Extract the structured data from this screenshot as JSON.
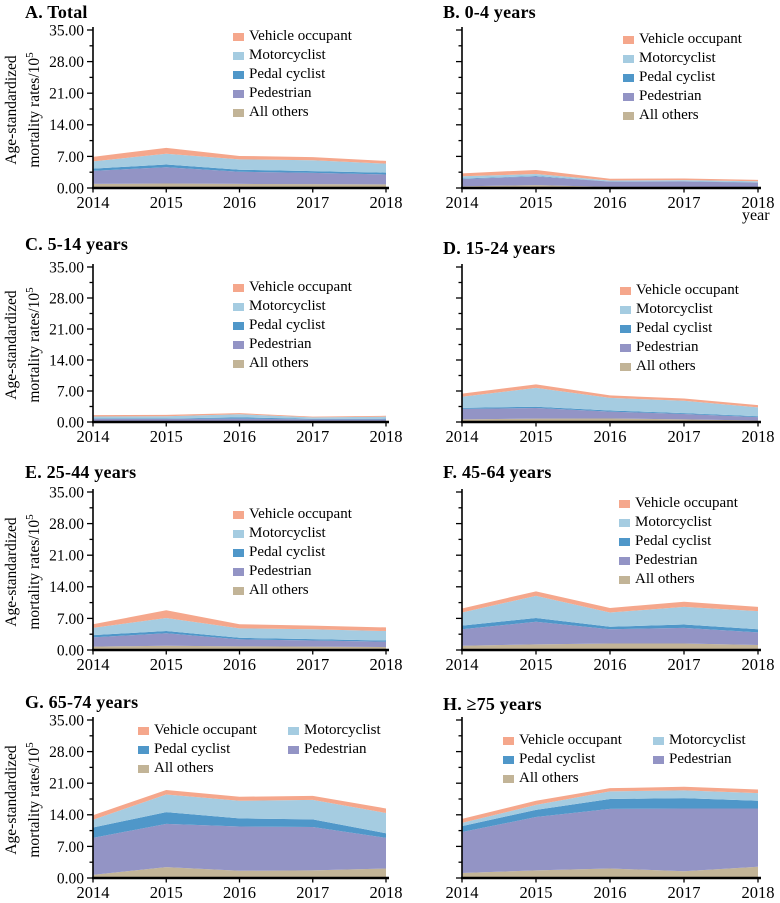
{
  "figure": {
    "y_axis_label_line1": "Age-standardized",
    "y_axis_label_line2": "mortality rates/10",
    "y_axis_label_superscript": "5",
    "x_axis_label": "year",
    "ytick_labels": [
      "0.00",
      "7.00",
      "14.00",
      "21.00",
      "28.00",
      "35.00"
    ],
    "y_minor_tick": 3.5
  },
  "colors": {
    "Vehicle occupant": "#F5A78C",
    "Motorcyclist": "#A5CCE1",
    "Pedal cyclist": "#4F97C9",
    "Pedestrian": "#9394C5",
    "All others": "#C2B497",
    "axis": "#000000",
    "text": "#1a1a1a"
  },
  "legend_order": [
    "Vehicle occupant",
    "Motorcyclist",
    "Pedal cyclist",
    "Pedestrian",
    "All others"
  ],
  "chart_data": [
    {
      "id": "A",
      "title": "A. Total",
      "type": "area",
      "stacked": true,
      "x": [
        2014,
        2015,
        2016,
        2017,
        2018
      ],
      "xticklabels": [
        "2014",
        "2015",
        "2016",
        "2017",
        "2018"
      ],
      "ylim": [
        0,
        35
      ],
      "yticks": [
        0,
        7,
        14,
        21,
        28,
        35
      ],
      "show_ytick_labels": true,
      "legend_columns": 1,
      "grid": false,
      "series": [
        {
          "name": "All others",
          "values": [
            0.9,
            1.0,
            0.9,
            0.85,
            0.8
          ]
        },
        {
          "name": "Pedestrian",
          "values": [
            2.9,
            3.6,
            2.7,
            2.5,
            2.2
          ]
        },
        {
          "name": "Pedal cyclist",
          "values": [
            0.5,
            0.6,
            0.45,
            0.4,
            0.4
          ]
        },
        {
          "name": "Motorcyclist",
          "values": [
            1.6,
            2.4,
            2.3,
            2.4,
            2.0
          ]
        },
        {
          "name": "Vehicle occupant",
          "values": [
            1.0,
            1.3,
            0.75,
            0.7,
            0.6
          ]
        }
      ]
    },
    {
      "id": "B",
      "title": "B. 0-4 years",
      "type": "area",
      "stacked": true,
      "x": [
        2014,
        2015,
        2016,
        2017,
        2018
      ],
      "xticklabels": [
        "2014",
        "2015",
        "2016",
        "2017",
        "2018"
      ],
      "ylim": [
        0,
        35
      ],
      "yticks": [
        0,
        7,
        14,
        21,
        28,
        35
      ],
      "show_ytick_labels": false,
      "legend_columns": 1,
      "grid": false,
      "series": [
        {
          "name": "All others",
          "values": [
            0.35,
            0.65,
            0.25,
            0.25,
            0.2
          ]
        },
        {
          "name": "Pedestrian",
          "values": [
            1.65,
            1.9,
            1.15,
            1.2,
            1.0
          ]
        },
        {
          "name": "Pedal cyclist",
          "values": [
            0.1,
            0.1,
            0.05,
            0.05,
            0.05
          ]
        },
        {
          "name": "Motorcyclist",
          "values": [
            0.5,
            0.45,
            0.2,
            0.25,
            0.25
          ]
        },
        {
          "name": "Vehicle occupant",
          "values": [
            0.65,
            0.9,
            0.4,
            0.35,
            0.3
          ]
        }
      ]
    },
    {
      "id": "C",
      "title": "C. 5-14 years",
      "type": "area",
      "stacked": true,
      "x": [
        2014,
        2015,
        2016,
        2017,
        2018
      ],
      "xticklabels": [
        "2014",
        "2015",
        "2016",
        "2017",
        "2018"
      ],
      "ylim": [
        0,
        35
      ],
      "yticks": [
        0,
        7,
        14,
        21,
        28,
        35
      ],
      "show_ytick_labels": true,
      "legend_columns": 1,
      "grid": false,
      "series": [
        {
          "name": "All others",
          "values": [
            0.15,
            0.15,
            0.15,
            0.1,
            0.1
          ]
        },
        {
          "name": "Pedestrian",
          "values": [
            0.55,
            0.55,
            0.6,
            0.5,
            0.5
          ]
        },
        {
          "name": "Pedal cyclist",
          "values": [
            0.1,
            0.1,
            0.3,
            0.1,
            0.15
          ]
        },
        {
          "name": "Motorcyclist",
          "values": [
            0.45,
            0.5,
            0.7,
            0.35,
            0.45
          ]
        },
        {
          "name": "Vehicle occupant",
          "values": [
            0.3,
            0.3,
            0.25,
            0.15,
            0.2
          ]
        }
      ]
    },
    {
      "id": "D",
      "title": "D. 15-24 years",
      "type": "area",
      "stacked": true,
      "x": [
        2014,
        2015,
        2016,
        2017,
        2018
      ],
      "xticklabels": [
        "2014",
        "2015",
        "2016",
        "2017",
        "2018"
      ],
      "ylim": [
        0,
        35
      ],
      "yticks": [
        0,
        7,
        14,
        21,
        28,
        35
      ],
      "show_ytick_labels": false,
      "legend_columns": 1,
      "grid": false,
      "series": [
        {
          "name": "All others",
          "values": [
            0.6,
            0.75,
            0.8,
            0.6,
            0.35
          ]
        },
        {
          "name": "Pedestrian",
          "values": [
            2.35,
            2.4,
            1.55,
            1.2,
            0.75
          ]
        },
        {
          "name": "Pedal cyclist",
          "values": [
            0.25,
            0.3,
            0.25,
            0.2,
            0.2
          ]
        },
        {
          "name": "Motorcyclist",
          "values": [
            2.5,
            4.25,
            2.85,
            2.8,
            2.0
          ]
        },
        {
          "name": "Vehicle occupant",
          "values": [
            0.7,
            0.8,
            0.55,
            0.5,
            0.5
          ]
        }
      ]
    },
    {
      "id": "E",
      "title": "E. 25-44 years",
      "type": "area",
      "stacked": true,
      "x": [
        2014,
        2015,
        2016,
        2017,
        2018
      ],
      "xticklabels": [
        "2014",
        "2015",
        "2016",
        "2017",
        "2018"
      ],
      "ylim": [
        0,
        35
      ],
      "yticks": [
        0,
        7,
        14,
        21,
        28,
        35
      ],
      "show_ytick_labels": true,
      "legend_columns": 1,
      "grid": false,
      "series": [
        {
          "name": "All others",
          "values": [
            0.75,
            0.95,
            0.8,
            0.75,
            0.65
          ]
        },
        {
          "name": "Pedestrian",
          "values": [
            2.05,
            2.75,
            1.55,
            1.35,
            1.2
          ]
        },
        {
          "name": "Pedal cyclist",
          "values": [
            0.5,
            0.5,
            0.35,
            0.3,
            0.25
          ]
        },
        {
          "name": "Motorcyclist",
          "values": [
            1.6,
            2.9,
            2.1,
            2.2,
            2.1
          ]
        },
        {
          "name": "Vehicle occupant",
          "values": [
            0.8,
            1.7,
            0.9,
            0.8,
            0.8
          ]
        }
      ]
    },
    {
      "id": "F",
      "title": "F. 45-64 years",
      "type": "area",
      "stacked": true,
      "x": [
        2014,
        2015,
        2016,
        2017,
        2018
      ],
      "xticklabels": [
        "2014",
        "2015",
        "2016",
        "2017",
        "2018"
      ],
      "ylim": [
        0,
        35
      ],
      "yticks": [
        0,
        7,
        14,
        21,
        28,
        35
      ],
      "show_ytick_labels": false,
      "legend_columns": 1,
      "grid": false,
      "series": [
        {
          "name": "All others",
          "values": [
            0.95,
            1.25,
            1.45,
            1.45,
            1.1
          ]
        },
        {
          "name": "Pedestrian",
          "values": [
            3.65,
            5.0,
            3.15,
            3.45,
            2.8
          ]
        },
        {
          "name": "Pedal cyclist",
          "values": [
            0.8,
            0.85,
            0.55,
            0.75,
            0.7
          ]
        },
        {
          "name": "Motorcyclist",
          "values": [
            2.9,
            4.9,
            3.15,
            3.9,
            4.0
          ]
        },
        {
          "name": "Vehicle occupant",
          "values": [
            0.9,
            1.0,
            1.0,
            1.15,
            0.95
          ]
        }
      ]
    },
    {
      "id": "G",
      "title": "G. 65-74 years",
      "type": "area",
      "stacked": true,
      "x": [
        2014,
        2015,
        2016,
        2017,
        2018
      ],
      "xticklabels": [
        "2014",
        "2015",
        "2016",
        "2017",
        "2018"
      ],
      "ylim": [
        0,
        35
      ],
      "yticks": [
        0,
        7,
        14,
        21,
        28,
        35
      ],
      "show_ytick_labels": true,
      "legend_columns": 2,
      "grid": false,
      "series": [
        {
          "name": "All others",
          "values": [
            0.7,
            2.4,
            1.6,
            1.7,
            2.1
          ]
        },
        {
          "name": "Pedestrian",
          "values": [
            8.2,
            9.6,
            9.8,
            9.6,
            6.8
          ]
        },
        {
          "name": "Pedal cyclist",
          "values": [
            2.3,
            2.6,
            1.8,
            1.7,
            1.0
          ]
        },
        {
          "name": "Motorcyclist",
          "values": [
            1.7,
            3.9,
            3.9,
            4.3,
            4.5
          ]
        },
        {
          "name": "Vehicle occupant",
          "values": [
            1.0,
            1.0,
            0.9,
            0.9,
            1.0
          ]
        }
      ]
    },
    {
      "id": "H",
      "title": "H. ≥75 years",
      "type": "area",
      "stacked": true,
      "x": [
        2014,
        2015,
        2016,
        2017,
        2018
      ],
      "xticklabels": [
        "2014",
        "2015",
        "2016",
        "2017",
        "2018"
      ],
      "ylim": [
        0,
        35
      ],
      "yticks": [
        0,
        7,
        14,
        21,
        28,
        35
      ],
      "show_ytick_labels": false,
      "legend_columns": 2,
      "grid": false,
      "series": [
        {
          "name": "All others",
          "values": [
            1.1,
            1.7,
            2.1,
            1.5,
            2.5
          ]
        },
        {
          "name": "Pedestrian",
          "values": [
            9.1,
            11.8,
            13.2,
            13.9,
            12.9
          ]
        },
        {
          "name": "Pedal cyclist",
          "values": [
            1.3,
            1.6,
            2.2,
            2.3,
            1.7
          ]
        },
        {
          "name": "Motorcyclist",
          "values": [
            0.7,
            1.1,
            1.7,
            1.7,
            1.7
          ]
        },
        {
          "name": "Vehicle occupant",
          "values": [
            0.9,
            0.9,
            0.7,
            0.8,
            0.8
          ]
        }
      ]
    }
  ]
}
